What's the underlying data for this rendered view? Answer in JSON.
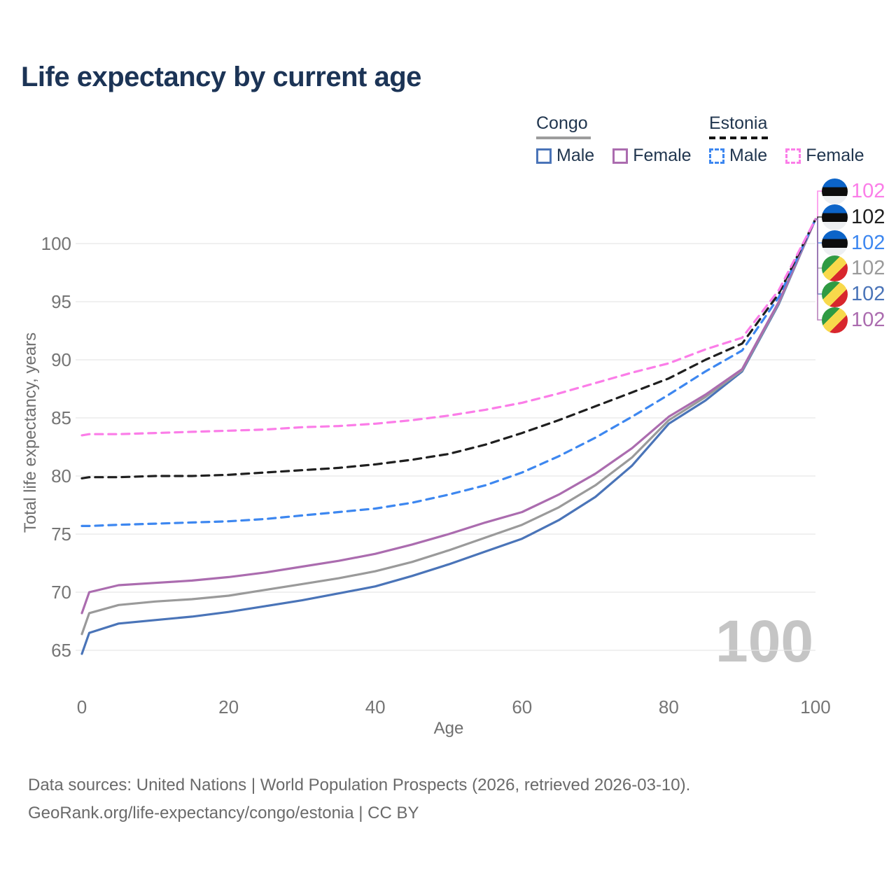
{
  "title": "Life expectancy by current age",
  "legend": {
    "congo": {
      "country": "Congo",
      "male": "Male",
      "female": "Female"
    },
    "estonia": {
      "country": "Estonia",
      "male": "Male",
      "female": "Female"
    }
  },
  "watermark": "100",
  "footer": {
    "line1": "Data sources: United Nations | World Population Prospects (2026, retrieved 2026-03-10).",
    "line2": "GeoRank.org/life-expectancy/congo/estonia | CC BY"
  },
  "colors": {
    "congo_male": "#4a74b8",
    "congo_all": "#9a9a9a",
    "congo_female": "#ab6caf",
    "estonia_male": "#3d87f0",
    "estonia_all": "#1f1f1f",
    "estonia_female": "#fb7de8",
    "grid": "#e6e6e8",
    "title_text": "#1c3456",
    "axis_text": "#757575"
  },
  "chart_data": {
    "type": "line",
    "title": "Life expectancy by current age",
    "xlabel": "Age",
    "ylabel": "Total life expectancy, years",
    "x_ticks": [
      0,
      20,
      40,
      60,
      80,
      100
    ],
    "y_ticks": [
      65,
      70,
      75,
      80,
      85,
      90,
      95,
      100
    ],
    "xlim": [
      0,
      100
    ],
    "ylim": [
      64,
      103
    ],
    "grid": "horizontal-only",
    "legend_position": "top-right",
    "x": [
      0,
      1,
      5,
      10,
      15,
      20,
      25,
      30,
      35,
      40,
      45,
      50,
      55,
      60,
      65,
      70,
      75,
      80,
      85,
      90,
      95,
      100
    ],
    "series": [
      {
        "name": "Congo Male",
        "country": "Congo",
        "sex": "male",
        "style": "solid",
        "color": "#4a74b8",
        "values": [
          64.7,
          66.5,
          67.3,
          67.6,
          67.9,
          68.3,
          68.8,
          69.3,
          69.9,
          70.5,
          71.4,
          72.4,
          73.5,
          74.6,
          76.2,
          78.2,
          80.9,
          84.5,
          86.5,
          89.0,
          94.8,
          102.1
        ]
      },
      {
        "name": "Congo Both sexes",
        "country": "Congo",
        "sex": "all",
        "style": "solid",
        "color": "#9a9a9a",
        "values": [
          66.4,
          68.2,
          68.9,
          69.2,
          69.4,
          69.7,
          70.2,
          70.7,
          71.2,
          71.8,
          72.6,
          73.6,
          74.7,
          75.8,
          77.3,
          79.2,
          81.6,
          84.8,
          86.8,
          89.1,
          94.9,
          102.1
        ]
      },
      {
        "name": "Congo Female",
        "country": "Congo",
        "sex": "female",
        "style": "solid",
        "color": "#ab6caf",
        "values": [
          68.2,
          70.0,
          70.6,
          70.8,
          71.0,
          71.3,
          71.7,
          72.2,
          72.7,
          73.3,
          74.1,
          75.0,
          76.0,
          76.9,
          78.4,
          80.2,
          82.4,
          85.1,
          87.0,
          89.2,
          95.0,
          102.1
        ]
      },
      {
        "name": "Estonia Male",
        "country": "Estonia",
        "sex": "male",
        "style": "dashed",
        "color": "#3d87f0",
        "values": [
          75.7,
          75.7,
          75.8,
          75.9,
          76.0,
          76.1,
          76.3,
          76.6,
          76.9,
          77.2,
          77.7,
          78.4,
          79.2,
          80.3,
          81.7,
          83.3,
          85.1,
          87.0,
          89.0,
          90.8,
          95.4,
          102.1
        ]
      },
      {
        "name": "Estonia Both sexes",
        "country": "Estonia",
        "sex": "all",
        "style": "dashed",
        "color": "#1f1f1f",
        "values": [
          79.8,
          79.9,
          79.9,
          80.0,
          80.0,
          80.1,
          80.3,
          80.5,
          80.7,
          81.0,
          81.4,
          81.9,
          82.7,
          83.7,
          84.8,
          86.0,
          87.2,
          88.4,
          90.0,
          91.4,
          95.7,
          102.1
        ]
      },
      {
        "name": "Estonia Female",
        "country": "Estonia",
        "sex": "female",
        "style": "dashed",
        "color": "#fb7de8",
        "values": [
          83.5,
          83.6,
          83.6,
          83.7,
          83.8,
          83.9,
          84.0,
          84.2,
          84.3,
          84.5,
          84.8,
          85.2,
          85.7,
          86.3,
          87.1,
          88.0,
          88.9,
          89.7,
          90.9,
          91.9,
          96.0,
          102.1
        ]
      }
    ]
  },
  "end_labels": [
    {
      "flag": "estonia",
      "value": "102",
      "color": "#fb7de8"
    },
    {
      "flag": "estonia",
      "value": "102",
      "color": "#1f1f1f"
    },
    {
      "flag": "estonia",
      "value": "102",
      "color": "#3d87f0"
    },
    {
      "flag": "congo",
      "value": "102",
      "color": "#9a9a9a"
    },
    {
      "flag": "congo",
      "value": "102",
      "color": "#4a74b8"
    },
    {
      "flag": "congo",
      "value": "102",
      "color": "#ab6caf"
    }
  ]
}
